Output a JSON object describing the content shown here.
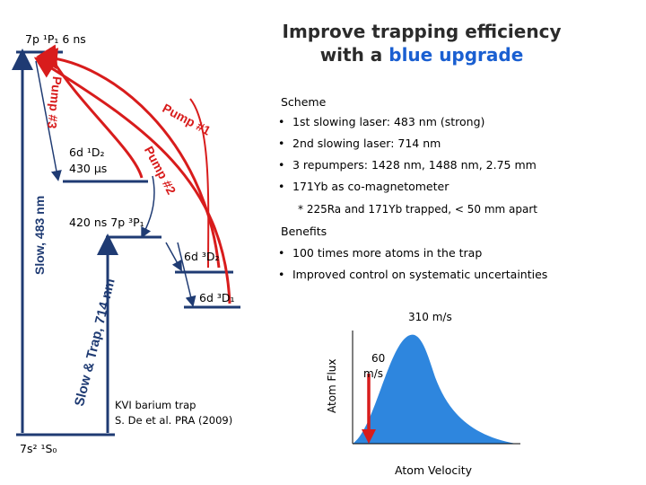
{
  "title": {
    "line1": "Improve trapping efficiency",
    "line2_prefix": "with a ",
    "line2_highlight": "blue upgrade"
  },
  "levels": {
    "top": "7p ¹P₁  6 ns",
    "d1": "6d ¹D₂",
    "d1_life": "430 μs",
    "p3": "420 ns  7p ³P₁",
    "d2": "6d ³D₂",
    "d3": "6d ³D₁",
    "ground": "7s² ¹S₀"
  },
  "transitions": {
    "slow483": "Slow, 483 nm",
    "slow714": "Slow & Trap, 714 nm",
    "pump1": "Pump #1",
    "pump2": "Pump #2",
    "pump3": "Pump #3"
  },
  "scheme": {
    "heading": "Scheme",
    "items": [
      "1st slowing laser: 483 nm (strong)",
      "2nd slowing laser: 714 nm",
      "3 repumpers: 1428 nm, 1488 nm, 2.75 mm",
      "171Yb as co-magnetometer"
    ],
    "note": "* 225Ra and 171Yb trapped, < 50 mm apart"
  },
  "benefits": {
    "heading": "Benefits",
    "items": [
      "100 times more atoms in the trap",
      "Improved control on systematic uncertainties"
    ]
  },
  "reference": {
    "line1": "KVI barium trap",
    "line2": "S. De et al. PRA (2009)"
  },
  "velocity_plot": {
    "ylabel": "Atom Flux",
    "xlabel": "Atom Velocity",
    "label_310": "310 m/s",
    "label_60_a": "60",
    "label_60_b": "m/s",
    "fill_color": "#2e86de",
    "arrow_color": "#d81c1c"
  },
  "colors": {
    "red": "#d81c1c",
    "blue": "#1a5fd1",
    "level": "#1f3b73"
  }
}
